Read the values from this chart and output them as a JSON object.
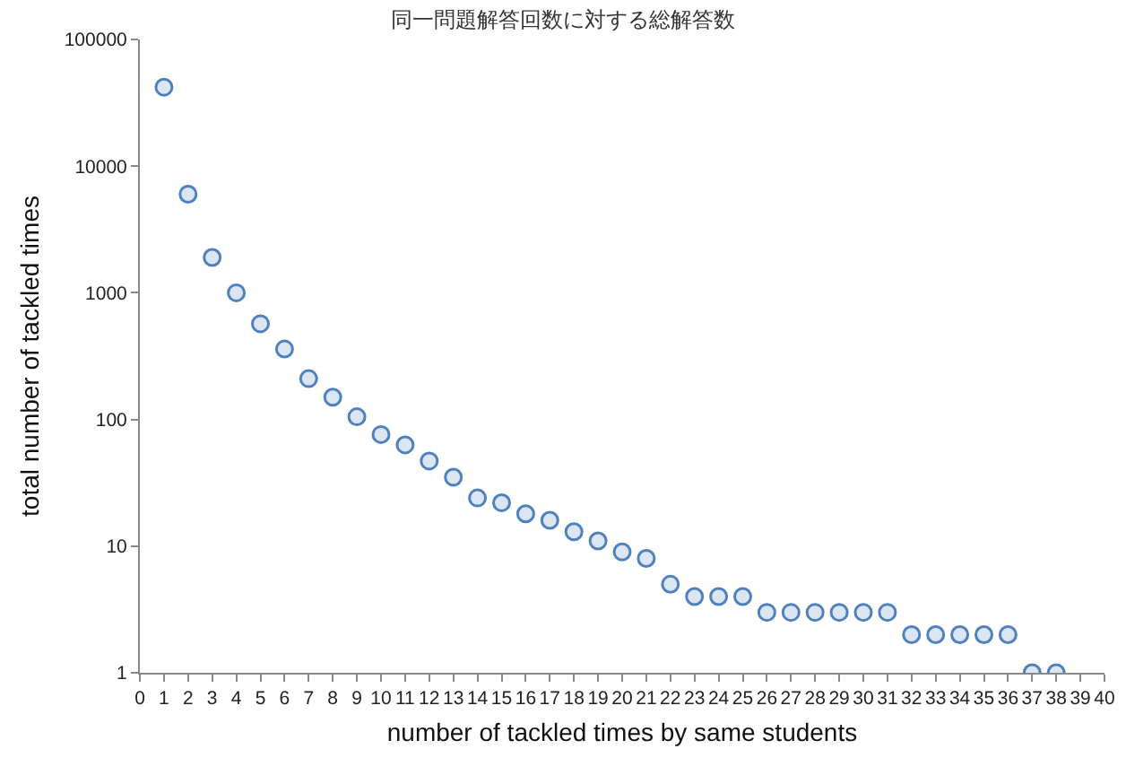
{
  "chart_data": {
    "type": "scatter",
    "title": "同一問題解答回数に対する総解答数",
    "xlabel": "number of tackled times by same students",
    "ylabel": "total number of tackled times",
    "x": [
      1,
      2,
      3,
      4,
      5,
      6,
      7,
      8,
      9,
      10,
      11,
      12,
      13,
      14,
      15,
      16,
      17,
      18,
      19,
      20,
      21,
      22,
      23,
      24,
      25,
      26,
      27,
      28,
      29,
      30,
      31,
      32,
      33,
      34,
      35,
      36,
      37,
      38
    ],
    "series": [
      {
        "color": "#4f81bd",
        "values": [
          42000,
          6000,
          1900,
          1000,
          570,
          360,
          210,
          150,
          105,
          76,
          63,
          47,
          35,
          24,
          22,
          18,
          16,
          13,
          11,
          9,
          8,
          5,
          4,
          4,
          4,
          3,
          3,
          3,
          3,
          3,
          3,
          2,
          2,
          2,
          2,
          2,
          1,
          1
        ]
      }
    ],
    "xlim": [
      0,
      40
    ],
    "xticks": [
      0,
      1,
      2,
      3,
      4,
      5,
      6,
      7,
      8,
      9,
      10,
      11,
      12,
      13,
      14,
      15,
      16,
      17,
      18,
      19,
      20,
      21,
      22,
      23,
      24,
      25,
      26,
      27,
      28,
      29,
      30,
      31,
      32,
      33,
      34,
      35,
      36,
      37,
      38,
      39,
      40
    ],
    "ylim": [
      1,
      100000
    ],
    "yticks": [
      1,
      10,
      100,
      1000,
      10000,
      100000
    ],
    "log": true,
    "grid": false,
    "marker": "circle"
  }
}
